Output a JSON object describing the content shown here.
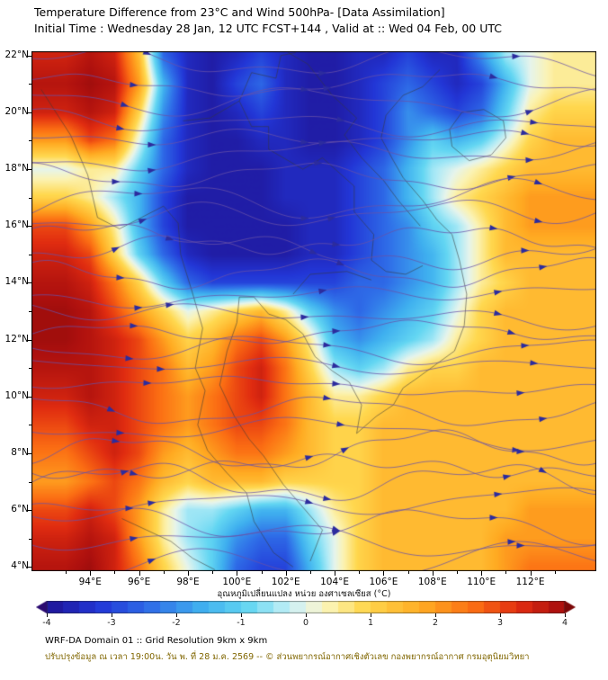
{
  "header": {
    "title": "Temperature Difference from 23°C and Wind 500hPa- [Data Assimilation]",
    "subtitle": "Initial Time : Wednesday 28 Jan, 12 UTC FCST+144 , Valid at ::  Wed 04 Feb, 00 UTC"
  },
  "map": {
    "lat_ticks": [
      22,
      20,
      18,
      16,
      14,
      12,
      10,
      8,
      6,
      4
    ],
    "lon_ticks": [
      94,
      96,
      98,
      100,
      102,
      104,
      106,
      108,
      110,
      112
    ],
    "lat_suffix": "°N",
    "lon_suffix": "°E"
  },
  "colorbar": {
    "title": "อุณหภูมิเปลี่ยนแปลง หน่วย องศาเซลเซียส (°C)",
    "ticks": [
      -4,
      -3,
      -2,
      -1,
      0,
      1,
      2,
      3,
      4
    ],
    "range": [
      -4,
      4
    ]
  },
  "footer": {
    "line1": "WRF-DA Domain 01 :: Grid Resolution 9km x 9km",
    "line2": "ปรับปรุงข้อมูล ณ เวลา 19:00น. วัน พ. ที่ 28 ม.ค. 2569 -- © ส่วนพยากรณ์อากาศเชิงตัวเลข กองพยากรณ์อากาศ กรมอุตุนิยมวิทยา"
  },
  "chart_data": {
    "type": "heatmap",
    "title": "Temperature Difference from 23°C and Wind 500hPa- [Data Assimilation]",
    "subtitle": "Initial Time : Wednesday 28 Jan, 12 UTC FCST+144 , Valid at :: Wed 04 Feb, 00 UTC",
    "units": "°C",
    "lon_range": [
      91.6,
      114.7
    ],
    "lat_range": [
      3.85,
      22.15
    ],
    "grid": {
      "lon_start": 93,
      "lon_step": 1,
      "lat_start": 22,
      "lat_step": -1,
      "values": [
        [
          3.5,
          3.8,
          3.5,
          1.5,
          -2.5,
          -3.5,
          -3.8,
          -3.5,
          -3.0,
          -3.5,
          -3.8,
          -3.8,
          -3.5,
          -3.5,
          -3.0,
          -3.5,
          -3.5,
          -2.0,
          -0.5,
          0.0,
          0.5
        ],
        [
          3.8,
          4.0,
          3.8,
          2.0,
          -1.5,
          -3.5,
          -3.8,
          -3.0,
          -2.5,
          -3.5,
          -3.8,
          -3.8,
          -3.5,
          -3.0,
          -2.5,
          -3.0,
          -3.5,
          -3.0,
          -1.5,
          0.0,
          0.5
        ],
        [
          3.5,
          3.8,
          3.5,
          1.0,
          -2.0,
          -3.5,
          -3.8,
          -3.5,
          -3.0,
          -3.5,
          -3.8,
          -3.8,
          -3.5,
          -3.0,
          -2.0,
          -2.5,
          -3.0,
          -2.5,
          -1.0,
          0.5,
          1.0
        ],
        [
          2.0,
          3.0,
          2.5,
          0.0,
          -2.5,
          -3.5,
          -3.8,
          -3.8,
          -3.5,
          -3.5,
          -3.8,
          -3.8,
          -3.5,
          -3.0,
          -2.0,
          -1.0,
          -1.5,
          -1.0,
          0.0,
          1.0,
          1.5
        ],
        [
          0.0,
          0.5,
          0.5,
          -1.0,
          -2.5,
          -3.5,
          -3.8,
          -3.8,
          -3.8,
          -3.5,
          -3.5,
          -3.5,
          -3.0,
          -2.5,
          -1.5,
          -0.5,
          0.0,
          0.5,
          1.0,
          1.5,
          1.5
        ],
        [
          1.0,
          0.5,
          -0.5,
          -1.5,
          -3.0,
          -3.8,
          -3.8,
          -3.8,
          -3.8,
          -3.5,
          -3.5,
          -3.5,
          -3.0,
          -2.5,
          -1.5,
          -0.5,
          0.5,
          1.0,
          1.5,
          2.0,
          2.0
        ],
        [
          3.0,
          2.0,
          0.5,
          -1.5,
          -3.0,
          -3.8,
          -3.8,
          -3.8,
          -3.8,
          -3.8,
          -3.5,
          -3.5,
          -3.0,
          -2.5,
          -2.0,
          -1.0,
          -0.5,
          0.5,
          1.5,
          2.0,
          2.0
        ],
        [
          3.5,
          3.0,
          1.0,
          -1.0,
          -2.5,
          -3.5,
          -3.8,
          -3.8,
          -3.8,
          -3.8,
          -3.5,
          -3.5,
          -3.0,
          -2.5,
          -2.0,
          -1.5,
          -0.5,
          0.5,
          1.5,
          1.5,
          1.5
        ],
        [
          3.8,
          3.5,
          2.5,
          1.0,
          -1.0,
          -2.5,
          -3.0,
          -3.0,
          -3.0,
          -3.0,
          -3.0,
          -3.0,
          -2.5,
          -2.5,
          -2.0,
          -1.5,
          -0.5,
          0.5,
          1.0,
          1.5,
          1.5
        ],
        [
          4.0,
          3.8,
          3.0,
          2.0,
          1.0,
          0.0,
          0.5,
          1.0,
          1.5,
          0.5,
          -1.0,
          -2.0,
          -2.5,
          -2.0,
          -1.5,
          -1.0,
          0.0,
          1.0,
          1.5,
          1.5,
          1.5
        ],
        [
          4.0,
          3.8,
          3.5,
          3.0,
          2.0,
          1.0,
          1.5,
          2.5,
          3.0,
          2.0,
          0.5,
          -1.5,
          -2.0,
          -1.5,
          -1.0,
          -0.5,
          0.5,
          1.0,
          1.5,
          1.5,
          1.5
        ],
        [
          3.8,
          3.8,
          3.5,
          3.0,
          2.5,
          1.5,
          2.0,
          3.0,
          3.5,
          2.5,
          1.0,
          -0.5,
          -1.0,
          -0.5,
          0.5,
          1.0,
          1.0,
          1.5,
          1.5,
          1.5,
          1.5
        ],
        [
          3.5,
          3.8,
          3.5,
          3.0,
          2.5,
          2.0,
          2.5,
          3.0,
          3.5,
          2.5,
          1.5,
          0.5,
          0.5,
          1.0,
          1.5,
          1.5,
          1.5,
          1.5,
          1.5,
          1.5,
          1.5
        ],
        [
          3.0,
          3.5,
          3.5,
          3.0,
          2.5,
          2.0,
          2.5,
          3.0,
          3.0,
          2.5,
          1.5,
          1.0,
          1.0,
          1.5,
          1.5,
          1.5,
          1.5,
          1.5,
          1.5,
          1.5,
          1.5
        ],
        [
          2.5,
          3.0,
          3.5,
          3.0,
          2.0,
          1.5,
          2.0,
          2.5,
          2.5,
          2.0,
          1.5,
          1.0,
          1.0,
          1.5,
          1.5,
          1.5,
          1.5,
          1.5,
          1.5,
          1.5,
          1.5
        ],
        [
          2.0,
          2.5,
          3.0,
          2.5,
          1.5,
          1.0,
          1.5,
          1.5,
          1.5,
          1.0,
          1.0,
          1.0,
          1.0,
          1.5,
          1.5,
          1.5,
          1.5,
          1.5,
          1.5,
          1.5,
          1.5
        ],
        [
          3.0,
          3.5,
          3.0,
          2.0,
          0.5,
          -0.5,
          -0.5,
          -1.0,
          -1.5,
          -1.5,
          -0.5,
          0.5,
          1.0,
          1.5,
          1.5,
          1.5,
          1.5,
          1.5,
          1.5,
          2.0,
          2.0
        ],
        [
          3.5,
          3.8,
          3.5,
          2.0,
          0.5,
          -0.5,
          -1.0,
          -2.0,
          -2.5,
          -2.5,
          -1.0,
          0.0,
          1.0,
          1.5,
          1.5,
          1.5,
          1.5,
          1.5,
          2.0,
          2.0,
          2.0
        ],
        [
          3.8,
          4.0,
          3.5,
          2.5,
          1.0,
          0.0,
          -1.0,
          -2.5,
          -3.0,
          -3.0,
          -1.5,
          0.0,
          1.0,
          1.5,
          1.5,
          1.5,
          1.5,
          1.5,
          2.0,
          2.5,
          2.5
        ]
      ]
    },
    "colormap": [
      [
        -4.3,
        "#2a0a70"
      ],
      [
        -4.0,
        "#1f1496"
      ],
      [
        -3.2,
        "#2236d6"
      ],
      [
        -2.4,
        "#2f6ee8"
      ],
      [
        -1.6,
        "#3fb0ef"
      ],
      [
        -0.9,
        "#63d6f2"
      ],
      [
        -0.4,
        "#aeeaf6"
      ],
      [
        0.0,
        "#e6f4ec"
      ],
      [
        0.35,
        "#fbf3b4"
      ],
      [
        0.9,
        "#ffd84f"
      ],
      [
        1.8,
        "#ffab22"
      ],
      [
        2.6,
        "#fb6d13"
      ],
      [
        3.3,
        "#e02c10"
      ],
      [
        3.9,
        "#ad100e"
      ],
      [
        4.3,
        "#7c0708"
      ]
    ],
    "streamlines": {
      "count": 27,
      "color": "rgba(104,82,168,0.75)",
      "arrow_color": "#2c2c9e",
      "seed": 11
    },
    "outline_color": "rgba(55,55,55,0.55)",
    "outlines": [
      [
        [
          92.0,
          20.8
        ],
        [
          93.2,
          19.2
        ],
        [
          93.9,
          17.8
        ],
        [
          94.3,
          16.3
        ],
        [
          95.2,
          15.9
        ],
        [
          96.1,
          16.3
        ],
        [
          97.0,
          16.7
        ],
        [
          97.6,
          16.1
        ],
        [
          97.7,
          15.0
        ],
        [
          98.2,
          13.6
        ],
        [
          98.6,
          12.4
        ],
        [
          98.3,
          11.0
        ],
        [
          98.7,
          10.2
        ],
        [
          98.4,
          9.0
        ],
        [
          98.8,
          8.1
        ],
        [
          99.6,
          7.3
        ],
        [
          100.4,
          6.6
        ],
        [
          100.7,
          5.6
        ],
        [
          101.5,
          4.5
        ],
        [
          102.3,
          4.0
        ]
      ],
      [
        [
          103.0,
          4.2
        ],
        [
          103.5,
          5.3
        ],
        [
          102.7,
          6.1
        ],
        [
          101.9,
          6.9
        ],
        [
          101.1,
          7.9
        ],
        [
          100.5,
          8.5
        ],
        [
          99.9,
          9.3
        ],
        [
          99.3,
          10.4
        ],
        [
          99.6,
          11.6
        ],
        [
          100.0,
          12.6
        ],
        [
          100.1,
          13.5
        ],
        [
          100.7,
          13.5
        ],
        [
          101.3,
          12.9
        ],
        [
          102.0,
          12.7
        ],
        [
          102.7,
          12.2
        ],
        [
          103.2,
          11.4
        ],
        [
          103.9,
          10.9
        ],
        [
          104.6,
          10.5
        ],
        [
          105.1,
          9.7
        ],
        [
          104.9,
          8.7
        ],
        [
          105.7,
          9.3
        ],
        [
          106.4,
          9.7
        ],
        [
          106.8,
          10.3
        ],
        [
          107.3,
          10.6
        ],
        [
          108.1,
          11.1
        ],
        [
          108.9,
          11.6
        ],
        [
          109.3,
          12.5
        ],
        [
          109.4,
          13.6
        ],
        [
          109.1,
          14.8
        ],
        [
          108.8,
          15.7
        ],
        [
          108.2,
          16.2
        ],
        [
          107.6,
          16.9
        ],
        [
          106.8,
          17.7
        ],
        [
          106.4,
          18.3
        ],
        [
          105.9,
          19.1
        ],
        [
          106.1,
          19.9
        ],
        [
          106.8,
          20.6
        ],
        [
          107.6,
          20.9
        ],
        [
          108.3,
          21.5
        ]
      ],
      [
        [
          108.7,
          19.4
        ],
        [
          109.2,
          20.0
        ],
        [
          110.1,
          20.1
        ],
        [
          110.9,
          19.7
        ],
        [
          111.0,
          19.1
        ],
        [
          110.4,
          18.5
        ],
        [
          109.5,
          18.3
        ],
        [
          108.8,
          18.8
        ],
        [
          108.7,
          19.4
        ]
      ],
      [
        [
          95.3,
          5.7
        ],
        [
          96.3,
          5.3
        ],
        [
          97.3,
          4.9
        ],
        [
          98.2,
          4.3
        ],
        [
          99.1,
          3.9
        ]
      ],
      [
        [
          97.8,
          19.7
        ],
        [
          98.9,
          19.8
        ],
        [
          100.1,
          20.4
        ],
        [
          100.6,
          21.4
        ],
        [
          101.6,
          21.2
        ],
        [
          101.8,
          22.0
        ],
        [
          102.4,
          22.1
        ]
      ],
      [
        [
          100.1,
          20.4
        ],
        [
          100.6,
          19.5
        ],
        [
          101.3,
          19.5
        ],
        [
          101.3,
          18.7
        ],
        [
          102.7,
          18.0
        ],
        [
          103.5,
          18.4
        ],
        [
          104.8,
          17.4
        ],
        [
          104.8,
          16.5
        ],
        [
          105.6,
          15.7
        ],
        [
          105.5,
          14.8
        ],
        [
          106.1,
          14.4
        ],
        [
          106.9,
          14.3
        ],
        [
          107.6,
          14.6
        ]
      ],
      [
        [
          102.1,
          22.1
        ],
        [
          102.9,
          21.7
        ],
        [
          103.9,
          20.6
        ],
        [
          104.9,
          19.8
        ],
        [
          104.4,
          19.2
        ],
        [
          105.1,
          18.4
        ],
        [
          106.0,
          17.6
        ],
        [
          106.6,
          16.9
        ],
        [
          107.2,
          16.3
        ],
        [
          107.5,
          16.0
        ]
      ],
      [
        [
          102.3,
          13.6
        ],
        [
          103.0,
          14.3
        ],
        [
          104.5,
          14.4
        ],
        [
          105.5,
          14.1
        ]
      ]
    ]
  }
}
